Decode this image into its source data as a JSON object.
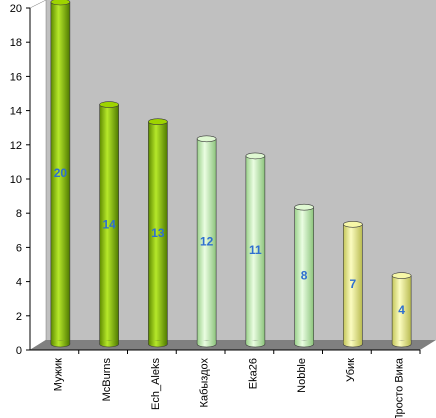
{
  "chart_data": {
    "type": "bar",
    "categories": [
      "Мужик",
      "McBurns",
      "Ech_Aleks",
      "Кабыздох",
      "Eka26",
      "Nobble",
      "Убик",
      "Просто Вика"
    ],
    "values": [
      20,
      14,
      13,
      12,
      11,
      8,
      7,
      4
    ],
    "data_labels": [
      "20",
      "14",
      "13",
      "12",
      "11",
      "8",
      "7",
      "4"
    ],
    "y_ticks": [
      "0",
      "2",
      "4",
      "6",
      "8",
      "10",
      "12",
      "14",
      "16",
      "18",
      "20"
    ],
    "ylim": [
      0,
      20
    ],
    "grid": false,
    "legend": "none",
    "style": "3d-cylinder",
    "bar_color_groups": [
      "#8fc400",
      "#8fc400",
      "#8fc400",
      "#c8f0b8",
      "#c8f0b8",
      "#c8f0b8",
      "#eef08a",
      "#eef08a"
    ],
    "colors": {
      "wall": "#c0c0c0",
      "floor": "#808080",
      "data_label": "#2e6fd0"
    }
  }
}
